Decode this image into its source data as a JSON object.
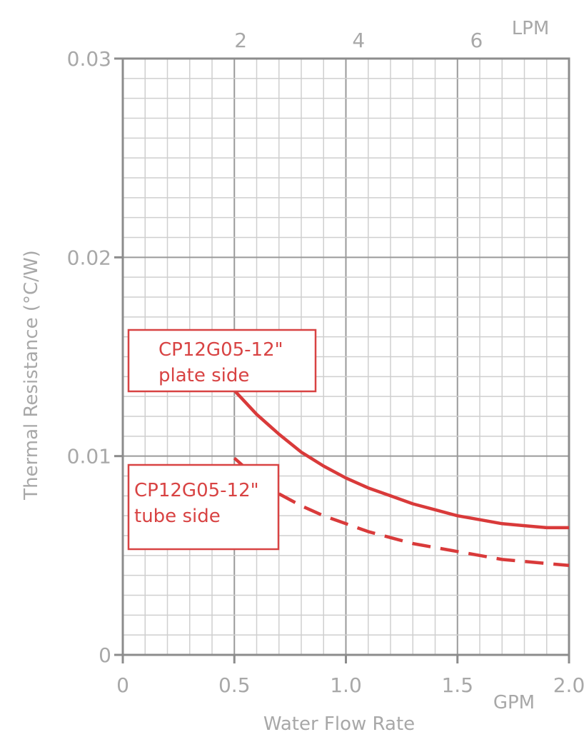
{
  "chart_data": {
    "type": "line",
    "xlabel": "Water Flow Rate",
    "ylabel": "Thermal Resistance (°C/W)",
    "x_unit_label": "GPM",
    "top_axis_unit_label": "LPM",
    "xlim": [
      0,
      2.0
    ],
    "ylim": [
      0,
      0.03
    ],
    "x_ticks": [
      {
        "value": 0,
        "label": "0"
      },
      {
        "value": 0.5,
        "label": "0.5"
      },
      {
        "value": 1.0,
        "label": "1.0"
      },
      {
        "value": 1.5,
        "label": "1.5"
      },
      {
        "value": 2.0,
        "label": "2.0"
      }
    ],
    "y_ticks": [
      {
        "value": 0,
        "label": "0"
      },
      {
        "value": 0.01,
        "label": "0.01"
      },
      {
        "value": 0.02,
        "label": "0.02"
      },
      {
        "value": 0.03,
        "label": "0.03"
      }
    ],
    "top_ticks": [
      {
        "value": 2,
        "label": "2"
      },
      {
        "value": 4,
        "label": "4"
      },
      {
        "value": 6,
        "label": "6"
      }
    ],
    "grid": true,
    "series": [
      {
        "name": "CP12G05-12\" plate side",
        "label_lines": [
          "CP12G05-12\"",
          "plate side"
        ],
        "style": "solid",
        "color": "#d93a3a",
        "x": [
          0.5,
          0.6,
          0.7,
          0.8,
          0.9,
          1.0,
          1.1,
          1.2,
          1.3,
          1.4,
          1.5,
          1.6,
          1.7,
          1.8,
          1.9,
          2.0
        ],
        "y": [
          0.0133,
          0.0121,
          0.0111,
          0.0102,
          0.0095,
          0.0089,
          0.0084,
          0.008,
          0.0076,
          0.0073,
          0.007,
          0.0068,
          0.0066,
          0.0065,
          0.0064,
          0.0064
        ]
      },
      {
        "name": "CP12G05-12\" tube side",
        "label_lines": [
          "CP12G05-12\"",
          "tube side"
        ],
        "style": "dashed",
        "color": "#d93a3a",
        "x": [
          0.5,
          0.6,
          0.7,
          0.8,
          0.9,
          1.0,
          1.1,
          1.2,
          1.3,
          1.4,
          1.5,
          1.6,
          1.7,
          1.8,
          1.9,
          2.0
        ],
        "y": [
          0.0099,
          0.0089,
          0.0081,
          0.0075,
          0.007,
          0.0066,
          0.0062,
          0.0059,
          0.0056,
          0.0054,
          0.0052,
          0.005,
          0.0048,
          0.0047,
          0.0046,
          0.0045
        ]
      }
    ]
  },
  "colors": {
    "grid_minor": "#cfcfcf",
    "grid_major": "#9a9a9a",
    "frame": "#8c8c8c",
    "tick_text": "#a8a8a8",
    "series": "#d93a3a",
    "callout_border": "#d84343"
  }
}
